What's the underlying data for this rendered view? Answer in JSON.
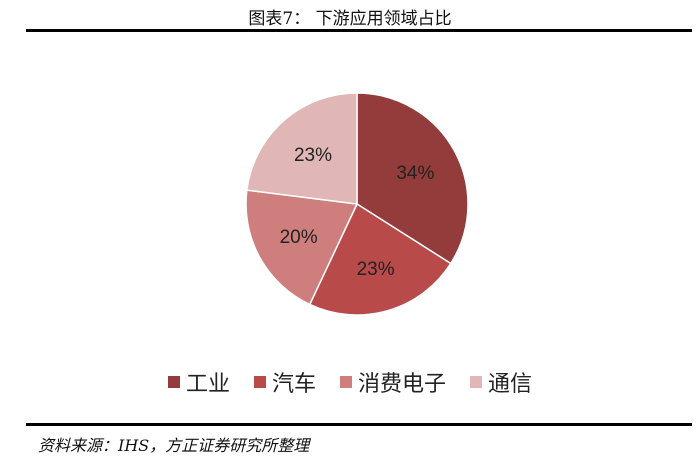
{
  "title": "图表7：  下游应用领域占比",
  "source": "资料来源：IHS，方正证券研究所整理",
  "chart_data": {
    "type": "pie",
    "title": "图表7：  下游应用领域占比",
    "categories": [
      "工业",
      "汽车",
      "消费电子",
      "通信"
    ],
    "values": [
      34,
      23,
      20,
      23
    ],
    "labels": [
      "34%",
      "23%",
      "20%",
      "23%"
    ],
    "colors": [
      "#943B3B",
      "#B84B4A",
      "#CF7E7E",
      "#E1B6B6"
    ],
    "start": "12 o'clock, clockwise",
    "legend": "bottom"
  }
}
